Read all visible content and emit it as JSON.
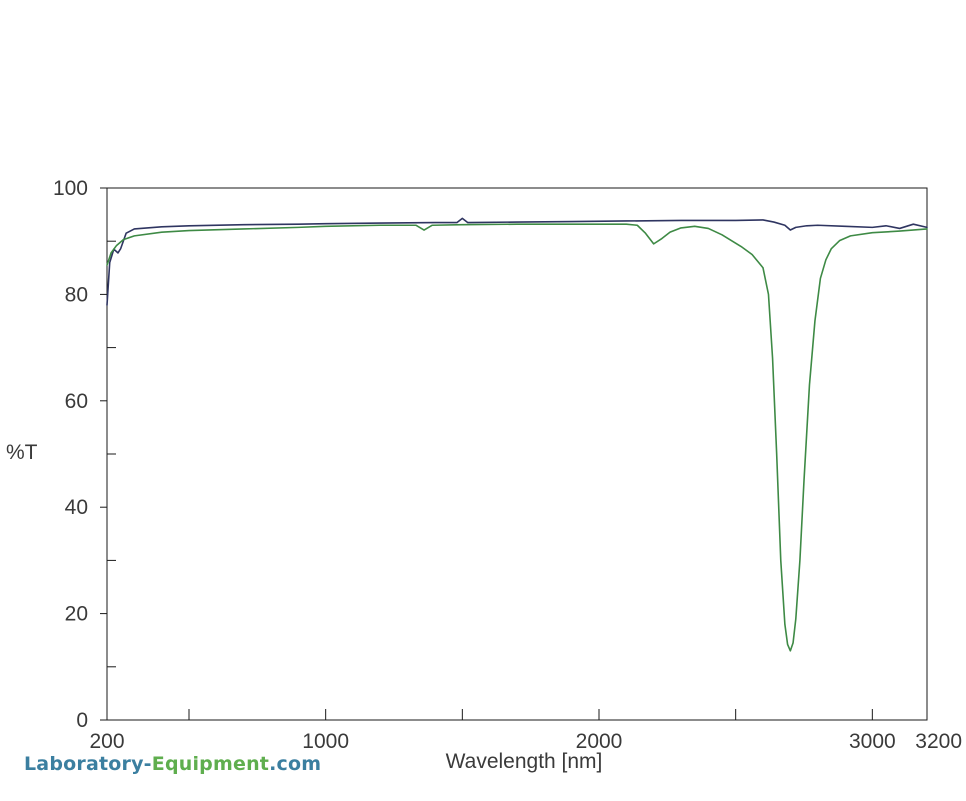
{
  "chart_data": {
    "type": "line",
    "title": "",
    "xlabel": "Wavelength [nm]",
    "ylabel": "%T",
    "xlim": [
      200,
      3200
    ],
    "ylim": [
      0,
      100
    ],
    "x_tick_labels": [
      "200",
      "1000",
      "2000",
      "3000",
      "3200"
    ],
    "x_label_values": [
      200,
      1000,
      2000,
      3000,
      3200
    ],
    "x_tick_marks": [
      200,
      500,
      1000,
      1500,
      2000,
      2500,
      3000
    ],
    "y_ticks": [
      0,
      20,
      40,
      60,
      80,
      100
    ],
    "y_minor_ticks": [
      10,
      30,
      50,
      70,
      90
    ],
    "grid": false,
    "series": [
      {
        "color": "#2f3561",
        "x": [
          200,
          210,
          225,
          240,
          250,
          270,
          300,
          400,
          500,
          700,
          900,
          1000,
          1200,
          1400,
          1480,
          1500,
          1520,
          1700,
          1900,
          2100,
          2300,
          2500,
          2600,
          2640,
          2680,
          2700,
          2720,
          2760,
          2800,
          2900,
          3000,
          3050,
          3100,
          3150,
          3200
        ],
        "y": [
          78,
          86,
          88.5,
          87.8,
          88.6,
          91.5,
          92.3,
          92.7,
          92.9,
          93.1,
          93.2,
          93.3,
          93.4,
          93.5,
          93.5,
          94.3,
          93.5,
          93.6,
          93.7,
          93.8,
          93.9,
          93.9,
          94,
          93.6,
          93,
          92.1,
          92.6,
          92.9,
          93,
          92.8,
          92.6,
          92.9,
          92.4,
          93.2,
          92.6
        ]
      },
      {
        "color": "#3e8a45",
        "x": [
          200,
          215,
          235,
          260,
          300,
          400,
          500,
          700,
          900,
          1000,
          1200,
          1330,
          1360,
          1390,
          1500,
          1700,
          1900,
          2100,
          2140,
          2170,
          2200,
          2230,
          2260,
          2300,
          2350,
          2400,
          2450,
          2520,
          2560,
          2600,
          2620,
          2635,
          2650,
          2665,
          2680,
          2690,
          2700,
          2710,
          2720,
          2735,
          2750,
          2770,
          2790,
          2810,
          2830,
          2850,
          2880,
          2920,
          3000,
          3100,
          3200
        ],
        "y": [
          85.5,
          87.8,
          89.2,
          90.3,
          91,
          91.7,
          92,
          92.3,
          92.6,
          92.8,
          93,
          93,
          92.1,
          93,
          93.1,
          93.2,
          93.2,
          93.2,
          93,
          91.5,
          89.5,
          90.5,
          91.7,
          92.5,
          92.8,
          92.4,
          91.2,
          89,
          87.5,
          85,
          80,
          68,
          50,
          30,
          18,
          14.2,
          13,
          14.5,
          19,
          30,
          45,
          63,
          75,
          83,
          86.5,
          88.6,
          90.1,
          91,
          91.6,
          91.9,
          92.3
        ]
      }
    ]
  },
  "logo": {
    "part1": "Laboratory-",
    "part2": "Equipment",
    "part3": ".com"
  }
}
